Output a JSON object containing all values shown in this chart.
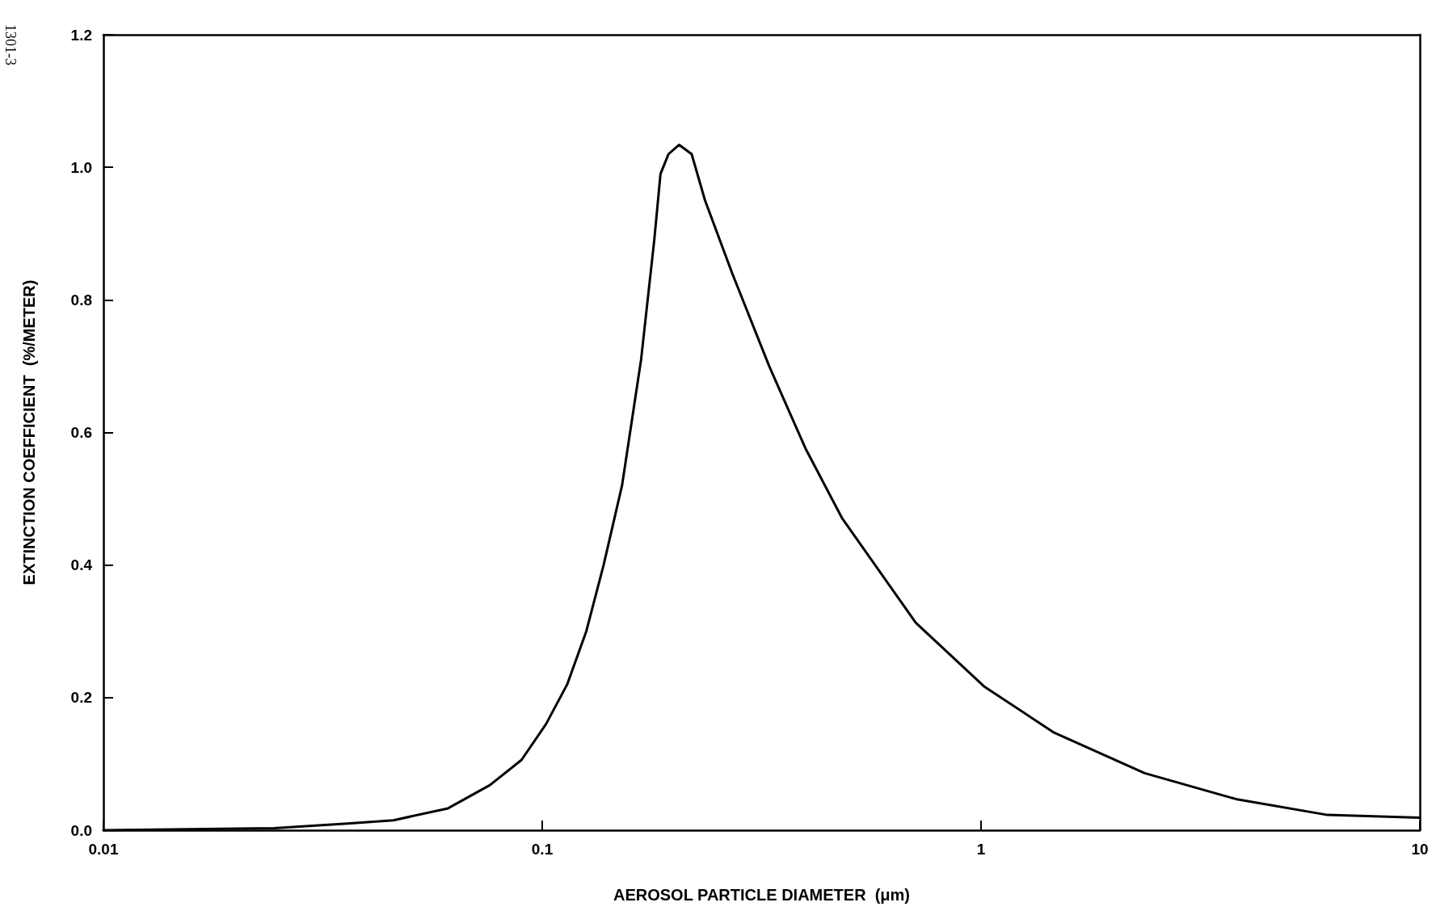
{
  "chart_data": {
    "type": "line",
    "xlabel": "AEROSOL PARTICLE DIAMETER  (μm)",
    "ylabel": "EXTINCTION COEFFICIENT  (%/METER)",
    "annotations": [
      "1301-3"
    ],
    "log": "x",
    "xlim": [
      0.01,
      10
    ],
    "xticks": [
      0.01,
      0.1,
      1,
      10
    ],
    "ylim": [
      0,
      1.2
    ],
    "yticks": [
      {
        "value": 0,
        "label": "0.0"
      },
      {
        "value": 0.2,
        "label": "0.2"
      },
      {
        "value": 0.4,
        "label": "0.4"
      },
      {
        "value": 0.6,
        "label": "0.6"
      },
      {
        "value": 0.8,
        "label": "0.8"
      },
      {
        "value": 1,
        "label": "1.0"
      },
      {
        "value": 1.2,
        "label": "1.2"
      }
    ],
    "grid": false,
    "series": [
      {
        "color": "#000000",
        "x": [
          0.01,
          0.0245,
          0.036,
          0.0458,
          0.061,
          0.076,
          0.0897,
          0.102,
          0.114,
          0.126,
          0.138,
          0.152,
          0.168,
          0.18,
          0.186,
          0.194,
          0.205,
          0.219,
          0.235,
          0.271,
          0.329,
          0.398,
          0.483,
          0.71,
          1.016,
          1.46,
          2.36,
          3.81,
          6.16,
          10
        ],
        "values": [
          0.0,
          0.003,
          0.01,
          0.015,
          0.033,
          0.068,
          0.106,
          0.16,
          0.22,
          0.3,
          0.4,
          0.52,
          0.71,
          0.89,
          0.99,
          1.02,
          1.034,
          1.02,
          0.95,
          0.84,
          0.7,
          0.576,
          0.47,
          0.313,
          0.217,
          0.148,
          0.086,
          0.047,
          0.023,
          0.019
        ]
      }
    ]
  }
}
